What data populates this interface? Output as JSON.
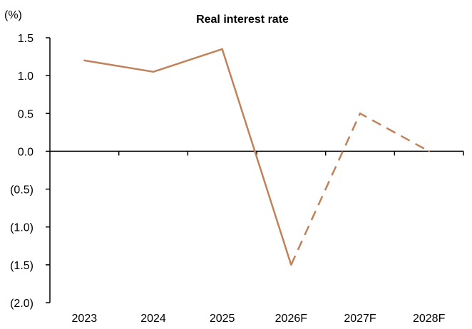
{
  "chart_data": {
    "type": "line",
    "title": "Real interest rate",
    "unit_label": "(%)",
    "categories": [
      "2023",
      "2024",
      "2025",
      "2026F",
      "2027F",
      "2028F"
    ],
    "series": [
      {
        "values": [
          1.2,
          1.05,
          1.35,
          -1.5,
          0.5,
          0.0
        ],
        "color": "#C0825A",
        "solid_through": "2026F",
        "dashed_from": "2026F"
      }
    ],
    "ylim": [
      -2.0,
      1.5
    ],
    "yticks": [
      1.5,
      1.0,
      0.5,
      0.0,
      -0.5,
      -1.0,
      -1.5,
      -2.0
    ],
    "ytick_labels": [
      "1.5",
      "1.0",
      "0.5",
      "0.0",
      "(0.5)",
      "(1.0)",
      "(1.5)",
      "(2.0)"
    ],
    "grid": false,
    "legend": false
  }
}
